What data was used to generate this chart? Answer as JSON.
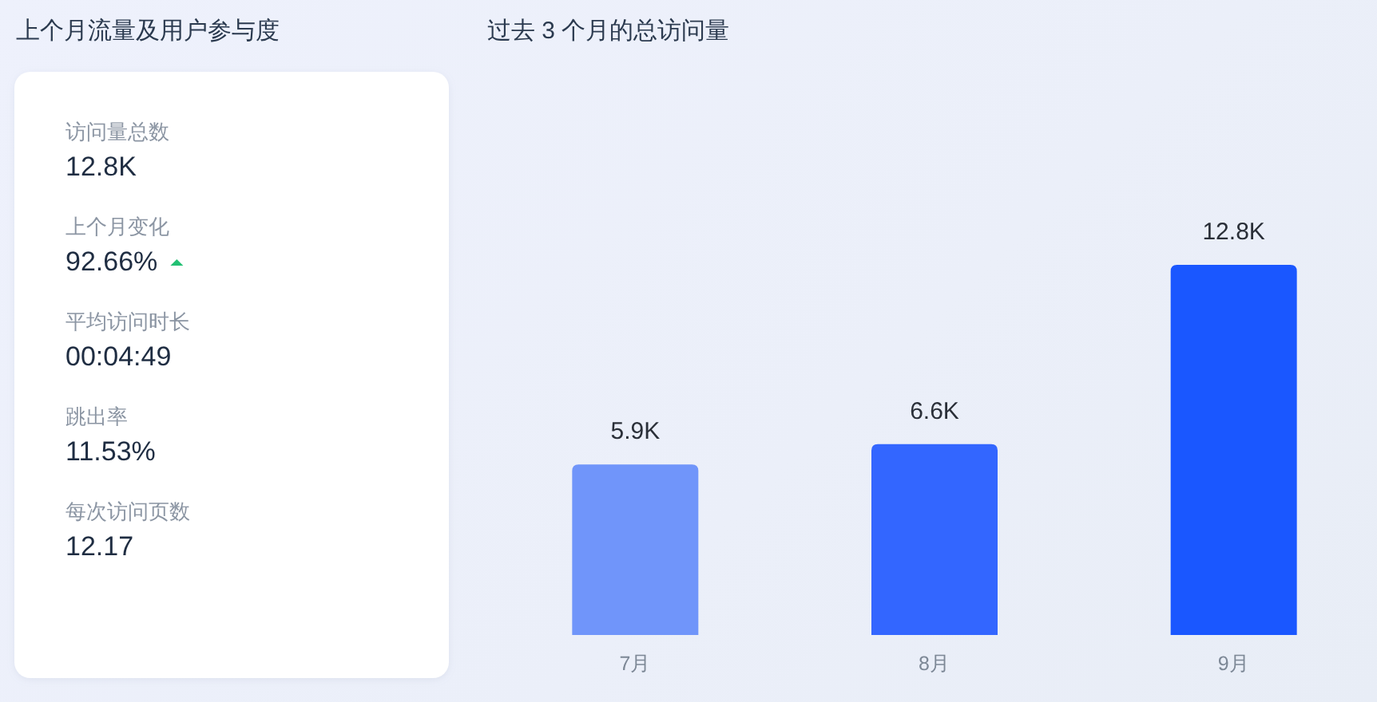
{
  "chart_data": [
    {
      "type": "other",
      "title": "上个月流量及用户参与度",
      "annotations": [
        "访问量总数",
        "12.8K",
        "上个月变化",
        "92.66%",
        "平均访问时长",
        "00:04:49",
        "跳出率",
        "11.53%",
        "每次访问页数",
        "12.17"
      ]
    },
    {
      "type": "bar",
      "title": "过去 3 个月的总访问量",
      "categories": [
        "7月",
        "8月",
        "9月"
      ],
      "values": [
        5.9,
        6.6,
        12.8
      ],
      "colors": [
        "#7095fa",
        "#3366ff",
        "#1a57ff"
      ],
      "value_labels": [
        "5.9K",
        "6.6K",
        "12.8K"
      ]
    }
  ]
}
